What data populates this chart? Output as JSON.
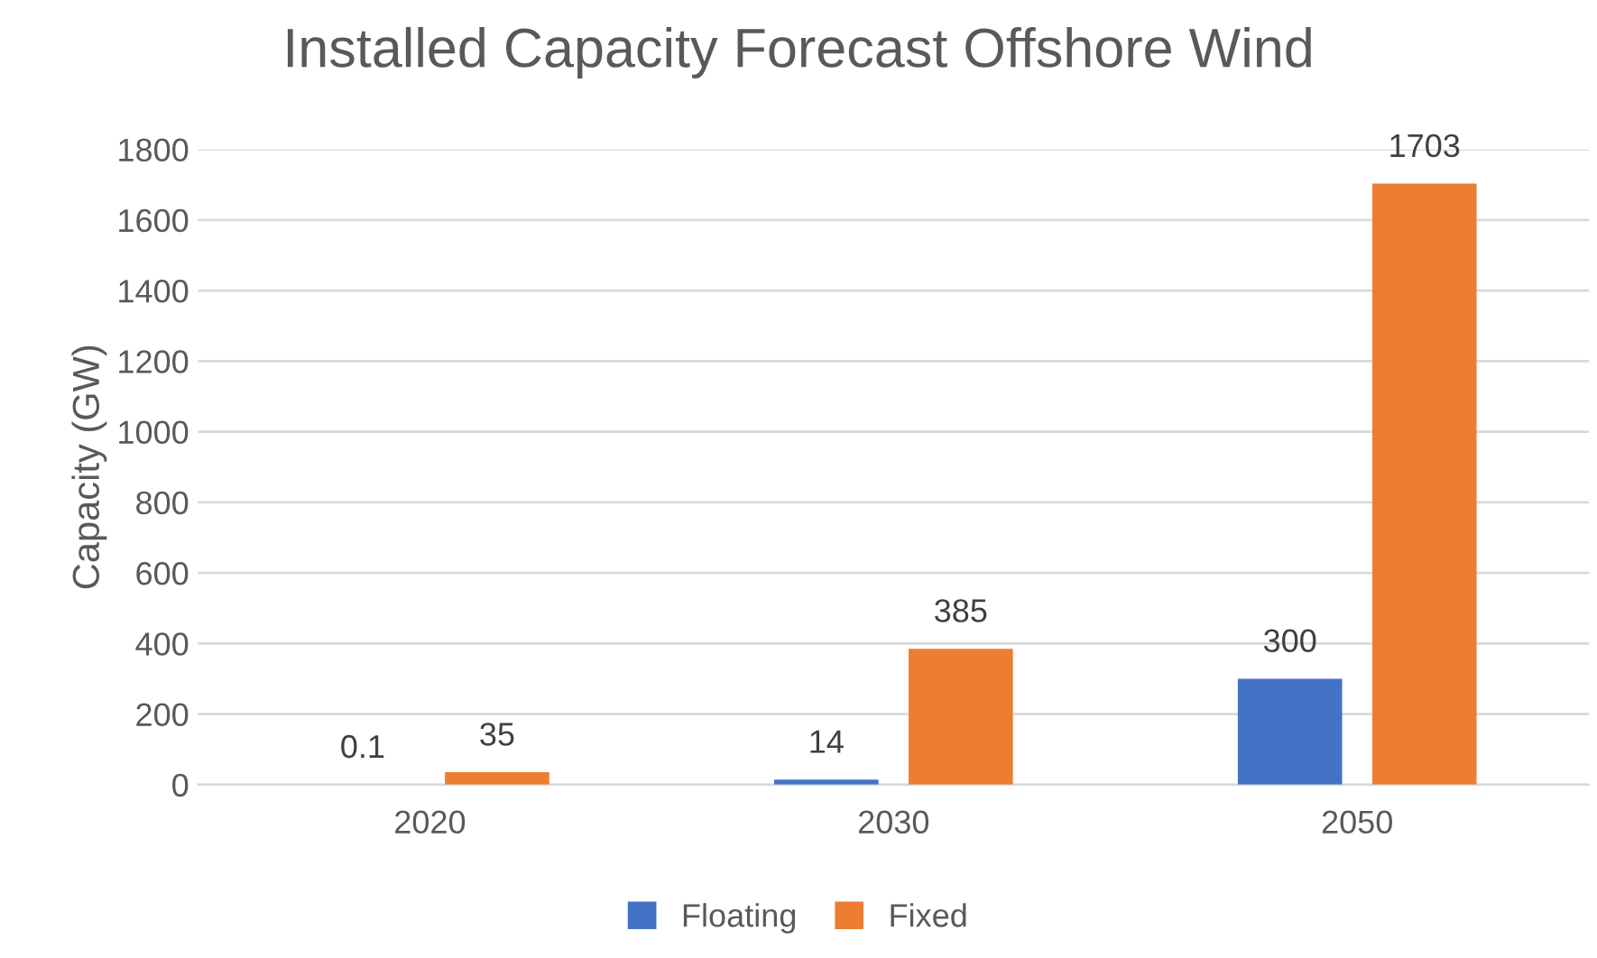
{
  "chart_data": {
    "type": "bar",
    "title": "Installed Capacity Forecast Offshore Wind",
    "ylabel": "Capacity (GW)",
    "categories": [
      "2020",
      "2030",
      "2050"
    ],
    "series": [
      {
        "name": "Floating",
        "color": "#4472c4",
        "values": [
          0.1,
          14,
          300
        ]
      },
      {
        "name": "Fixed",
        "color": "#ed7d31",
        "values": [
          35,
          385,
          1703
        ]
      }
    ],
    "ylim": [
      0,
      1800
    ],
    "yticks": [
      0,
      200,
      400,
      600,
      800,
      1000,
      1200,
      1400,
      1600,
      1800
    ],
    "grid": "y",
    "legend": "bottom",
    "data_labels": true
  }
}
